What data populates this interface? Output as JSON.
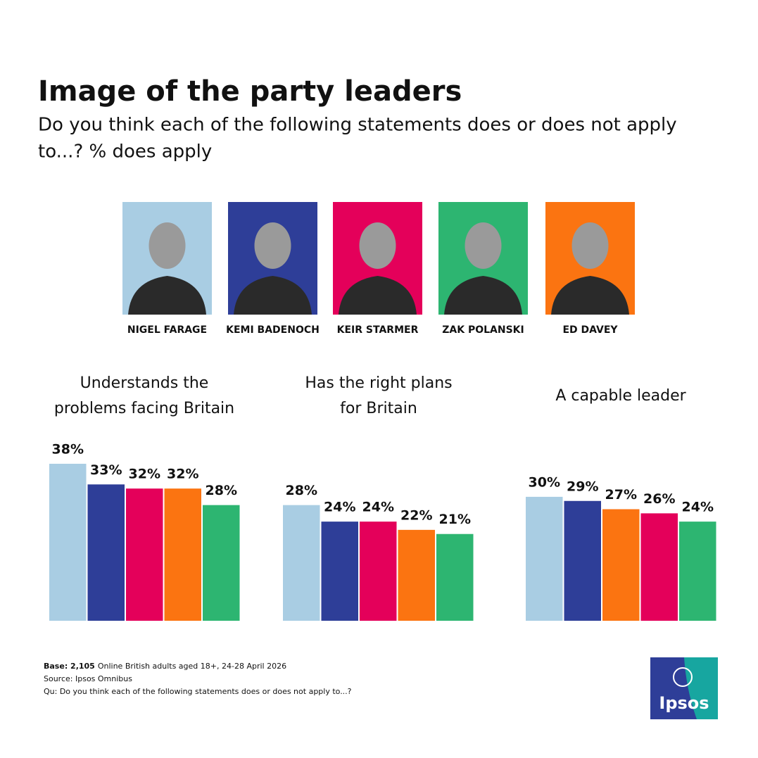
{
  "header": {
    "title": "Image of the party leaders",
    "subtitle": [
      "Do you think each of the following statements does or does not apply",
      "to...? % does apply"
    ]
  },
  "leaders": [
    {
      "name": "NIGEL FARAGE",
      "color": "#a9cde3"
    },
    {
      "name": "KEMI BADENOCH",
      "color": "#2e3e98"
    },
    {
      "name": "KEIR STARMER",
      "color": "#e4005a"
    },
    {
      "name": "ZAK POLANSKI",
      "color": "#2db571"
    },
    {
      "name": "ED DAVEY",
      "color": "#fb7411"
    }
  ],
  "chart_data": [
    {
      "type": "bar",
      "title": [
        "Understands the",
        "problems facing Britain"
      ],
      "values": [
        38,
        33,
        32,
        32,
        28
      ],
      "value_labels": [
        "38%",
        "33%",
        "32%",
        "32%",
        "28%"
      ],
      "colors": [
        "#a9cde3",
        "#2e3e98",
        "#e4005a",
        "#fb7411",
        "#2db571"
      ]
    },
    {
      "type": "bar",
      "title": [
        "Has the right plans",
        "for Britain"
      ],
      "values": [
        28,
        24,
        24,
        22,
        21
      ],
      "value_labels": [
        "28%",
        "24%",
        "24%",
        "22%",
        "21%"
      ],
      "colors": [
        "#a9cde3",
        "#2e3e98",
        "#e4005a",
        "#fb7411",
        "#2db571"
      ]
    },
    {
      "type": "bar",
      "title": [
        "A capable leader"
      ],
      "values": [
        30,
        29,
        27,
        26,
        24
      ],
      "value_labels": [
        "30%",
        "29%",
        "27%",
        "26%",
        "24%"
      ],
      "colors": [
        "#a9cde3",
        "#2e3e98",
        "#fb7411",
        "#e4005a",
        "#2db571"
      ]
    }
  ],
  "footer": {
    "base_label": "Base: 2,105",
    "base_text": "Online British adults aged 18+,  24-28 April 2026",
    "source": "Source: Ipsos Omnibus",
    "question": "Qu: Do you think each of the following statements does or does not apply to...?",
    "logo": "Ipsos"
  }
}
